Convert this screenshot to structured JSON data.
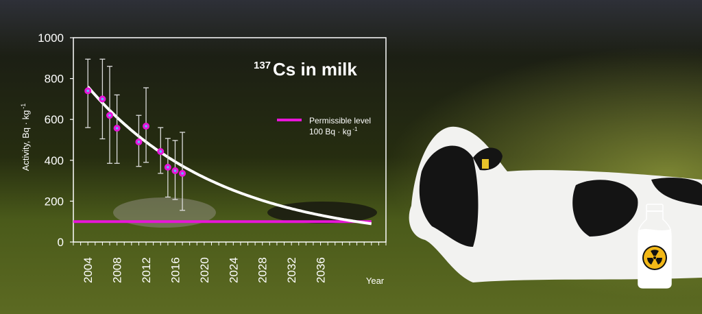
{
  "chart_data": {
    "type": "scatter",
    "title": "Cs in milk",
    "title_superscript": "137",
    "xlabel": "Year",
    "ylabel": "Activity, Bq · kg",
    "ylabel_superscript": "-1",
    "xlim": [
      2002,
      2045
    ],
    "ylim": [
      0,
      1000
    ],
    "x_ticks": [
      2004,
      2008,
      2012,
      2016,
      2020,
      2024,
      2028,
      2032,
      2036
    ],
    "y_ticks": [
      0,
      200,
      400,
      600,
      800,
      1000
    ],
    "grid": false,
    "points": [
      {
        "x": 2004,
        "y": 740,
        "err_low": 560,
        "err_high": 895
      },
      {
        "x": 2006,
        "y": 700,
        "err_low": 505,
        "err_high": 895
      },
      {
        "x": 2007,
        "y": 620,
        "err_low": 385,
        "err_high": 860
      },
      {
        "x": 2008,
        "y": 557,
        "err_low": 385,
        "err_high": 720
      },
      {
        "x": 2011,
        "y": 490,
        "err_low": 370,
        "err_high": 620
      },
      {
        "x": 2012,
        "y": 567,
        "err_low": 390,
        "err_high": 755
      },
      {
        "x": 2014,
        "y": 443,
        "err_low": 336,
        "err_high": 560
      },
      {
        "x": 2015,
        "y": 366,
        "err_low": 220,
        "err_high": 507
      },
      {
        "x": 2016,
        "y": 349,
        "err_low": 208,
        "err_high": 497
      },
      {
        "x": 2017,
        "y": 336,
        "err_low": 155,
        "err_high": 537
      }
    ],
    "fit_curve": {
      "type": "exponential",
      "x_start": 2004,
      "x_end": 2043,
      "y_start": 760,
      "decay_per_year": 0.0549,
      "color": "#ffffff"
    },
    "reference_line": {
      "value": 100,
      "label": "Permissible level",
      "label_line2": "100 Bq · kg",
      "label_superscript": "-1",
      "color": "#e815d8"
    },
    "legend_placement": "top-right",
    "point_color": "#e815d8",
    "point_center_color": "#5fb8ff"
  },
  "decor": {
    "icon": "milk-bottle-radiation-icon",
    "background": "cow-lying-in-meadow-photo"
  }
}
